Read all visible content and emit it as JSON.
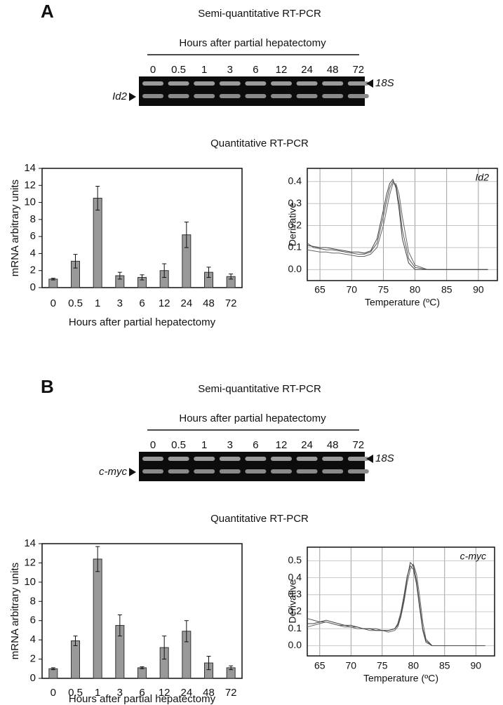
{
  "panels": [
    {
      "label": "A",
      "semi_title": "Semi-quantitative RT-PCR",
      "hours_title": "Hours after partial hepatectomy",
      "lanes": [
        "0",
        "0.5",
        "1",
        "3",
        "6",
        "12",
        "24",
        "48",
        "72"
      ],
      "upper_band": "18S",
      "lower_band": "Id2",
      "quant_title": "Quantitative RT-PCR"
    },
    {
      "label": "B",
      "semi_title": "Semi-quantitative RT-PCR",
      "hours_title": "Hours after partial hepatectomy",
      "lanes": [
        "0",
        "0.5",
        "1",
        "3",
        "6",
        "12",
        "24",
        "48",
        "72"
      ],
      "upper_band": "18S",
      "lower_band": "c-myc",
      "quant_title": "Quantitative RT-PCR"
    }
  ],
  "chart_data": [
    {
      "type": "bar",
      "categories": [
        "0",
        "0.5",
        "1",
        "3",
        "6",
        "12",
        "24",
        "48",
        "72"
      ],
      "values": [
        1.0,
        3.1,
        10.5,
        1.4,
        1.2,
        2.0,
        6.2,
        1.8,
        1.3
      ],
      "errors": [
        0.1,
        0.8,
        1.4,
        0.4,
        0.3,
        0.8,
        1.5,
        0.6,
        0.3
      ],
      "color": "#999999",
      "ylim": [
        0,
        14
      ],
      "yticks": [
        0,
        2,
        4,
        6,
        8,
        10,
        12,
        14
      ],
      "xlabel": "Hours after partial hepatectomy",
      "ylabel": "mRNA arbitrary units"
    },
    {
      "type": "line",
      "annotation": "Id2",
      "xlabel": "Temperature (ºC)",
      "ylabel": "Derivative",
      "x": [
        63,
        64,
        65,
        66,
        67,
        68,
        69,
        70,
        71,
        72,
        73,
        74,
        75,
        75.5,
        76,
        76.5,
        77,
        77.5,
        78,
        79,
        80,
        82,
        85,
        88,
        91.5
      ],
      "series": [
        {
          "color": "#555555",
          "values": [
            0.12,
            0.1,
            0.095,
            0.09,
            0.09,
            0.085,
            0.08,
            0.075,
            0.07,
            0.07,
            0.08,
            0.12,
            0.24,
            0.31,
            0.37,
            0.4,
            0.38,
            0.3,
            0.18,
            0.05,
            0.01,
            0,
            0,
            0,
            0
          ]
        },
        {
          "color": "#666666",
          "values": [
            0.09,
            0.085,
            0.08,
            0.08,
            0.075,
            0.075,
            0.07,
            0.065,
            0.06,
            0.06,
            0.07,
            0.1,
            0.2,
            0.27,
            0.34,
            0.39,
            0.39,
            0.34,
            0.24,
            0.08,
            0.02,
            0,
            0,
            0,
            0
          ]
        },
        {
          "color": "#444444",
          "values": [
            0.11,
            0.105,
            0.1,
            0.1,
            0.095,
            0.09,
            0.085,
            0.08,
            0.08,
            0.075,
            0.085,
            0.14,
            0.27,
            0.34,
            0.39,
            0.41,
            0.37,
            0.27,
            0.14,
            0.03,
            0,
            0,
            0,
            0,
            0
          ]
        }
      ],
      "xlim": [
        63,
        93
      ],
      "xticks": [
        65,
        70,
        75,
        80,
        85,
        90
      ],
      "ylim": [
        -0.05,
        0.46
      ],
      "yticks": [
        {
          "value": 0,
          "label": "0.0"
        },
        0.1,
        0.2,
        0.3,
        0.4
      ],
      "grid": true
    },
    {
      "type": "bar",
      "categories": [
        "0",
        "0.5",
        "1",
        "3",
        "6",
        "12",
        "24",
        "48",
        "72"
      ],
      "values": [
        1.0,
        3.9,
        12.4,
        5.5,
        1.1,
        3.2,
        4.9,
        1.6,
        1.1
      ],
      "errors": [
        0.1,
        0.5,
        1.3,
        1.1,
        0.1,
        1.2,
        1.1,
        0.7,
        0.2
      ],
      "color": "#999999",
      "ylim": [
        0,
        14
      ],
      "yticks": [
        0,
        2,
        4,
        6,
        8,
        10,
        12,
        14
      ],
      "xlabel": "Hours after partial hepatectomy",
      "ylabel": "mRNA arbitrary units"
    },
    {
      "type": "line",
      "annotation": "c-myc",
      "xlabel": "Temperature (ºC)",
      "ylabel": "Derivative",
      "x": [
        63,
        64,
        65,
        66,
        67,
        68,
        69,
        70,
        71,
        72,
        73,
        74,
        75,
        76,
        77,
        77.5,
        78,
        78.5,
        79,
        79.5,
        80,
        80.5,
        81,
        81.5,
        82,
        83,
        85,
        88,
        91.5
      ],
      "series": [
        {
          "color": "#555555",
          "values": [
            0.16,
            0.15,
            0.14,
            0.14,
            0.13,
            0.12,
            0.12,
            0.11,
            0.11,
            0.1,
            0.1,
            0.1,
            0.09,
            0.09,
            0.1,
            0.13,
            0.2,
            0.3,
            0.41,
            0.47,
            0.45,
            0.36,
            0.22,
            0.09,
            0.02,
            0,
            0,
            0,
            0
          ]
        },
        {
          "color": "#666666",
          "values": [
            0.11,
            0.12,
            0.13,
            0.14,
            0.13,
            0.12,
            0.11,
            0.11,
            0.1,
            0.1,
            0.09,
            0.09,
            0.09,
            0.08,
            0.09,
            0.11,
            0.17,
            0.26,
            0.37,
            0.45,
            0.48,
            0.42,
            0.29,
            0.14,
            0.04,
            0,
            0,
            0,
            0
          ]
        },
        {
          "color": "#444444",
          "values": [
            0.13,
            0.13,
            0.14,
            0.15,
            0.14,
            0.13,
            0.12,
            0.12,
            0.11,
            0.1,
            0.1,
            0.09,
            0.09,
            0.09,
            0.1,
            0.12,
            0.18,
            0.28,
            0.4,
            0.49,
            0.47,
            0.38,
            0.24,
            0.1,
            0.03,
            0,
            0,
            0,
            0
          ]
        }
      ],
      "xlim": [
        63,
        93
      ],
      "xticks": [
        65,
        70,
        75,
        80,
        85,
        90
      ],
      "ylim": [
        -0.06,
        0.58
      ],
      "yticks": [
        {
          "value": 0,
          "label": "0.0"
        },
        0.1,
        0.2,
        0.3,
        0.4,
        0.5
      ],
      "grid": true
    }
  ]
}
